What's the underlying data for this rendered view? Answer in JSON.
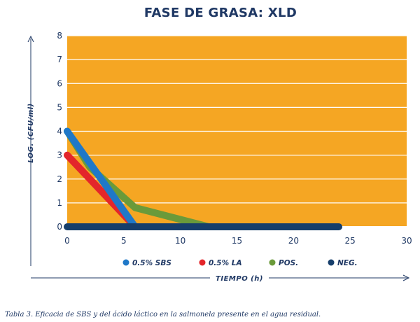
{
  "chart_data": {
    "type": "line",
    "title": "FASE DE GRASA: XLD",
    "xlabel": "TIEMPO (h)",
    "ylabel": "LOG. (CFU/ml)",
    "xlim": [
      0,
      30
    ],
    "ylim": [
      0,
      8
    ],
    "xticks": [
      0,
      5,
      10,
      15,
      20,
      25,
      30
    ],
    "yticks": [
      0,
      1,
      2,
      3,
      4,
      5,
      6,
      7,
      8
    ],
    "grid": "horizontal",
    "legend_position": "bottom",
    "background_color": "#f5a623",
    "series": [
      {
        "name": "0.5% SBS",
        "color": "#1f78c8",
        "x": [
          0,
          6
        ],
        "y": [
          4,
          0
        ]
      },
      {
        "name": "0.5% LA",
        "color": "#e3262b",
        "x": [
          0,
          6
        ],
        "y": [
          3,
          0
        ]
      },
      {
        "name": "POS.",
        "color": "#6a9a3a",
        "x": [
          0,
          2,
          6,
          12.5
        ],
        "y": [
          4,
          2.5,
          0.8,
          0
        ]
      },
      {
        "name": "NEG.",
        "color": "#163e6b",
        "x": [
          0,
          24
        ],
        "y": [
          0,
          0
        ]
      }
    ]
  },
  "caption": "Tabla 3. Eficacia de SBS y del ácido láctico en la salmonela presente en el agua residual."
}
